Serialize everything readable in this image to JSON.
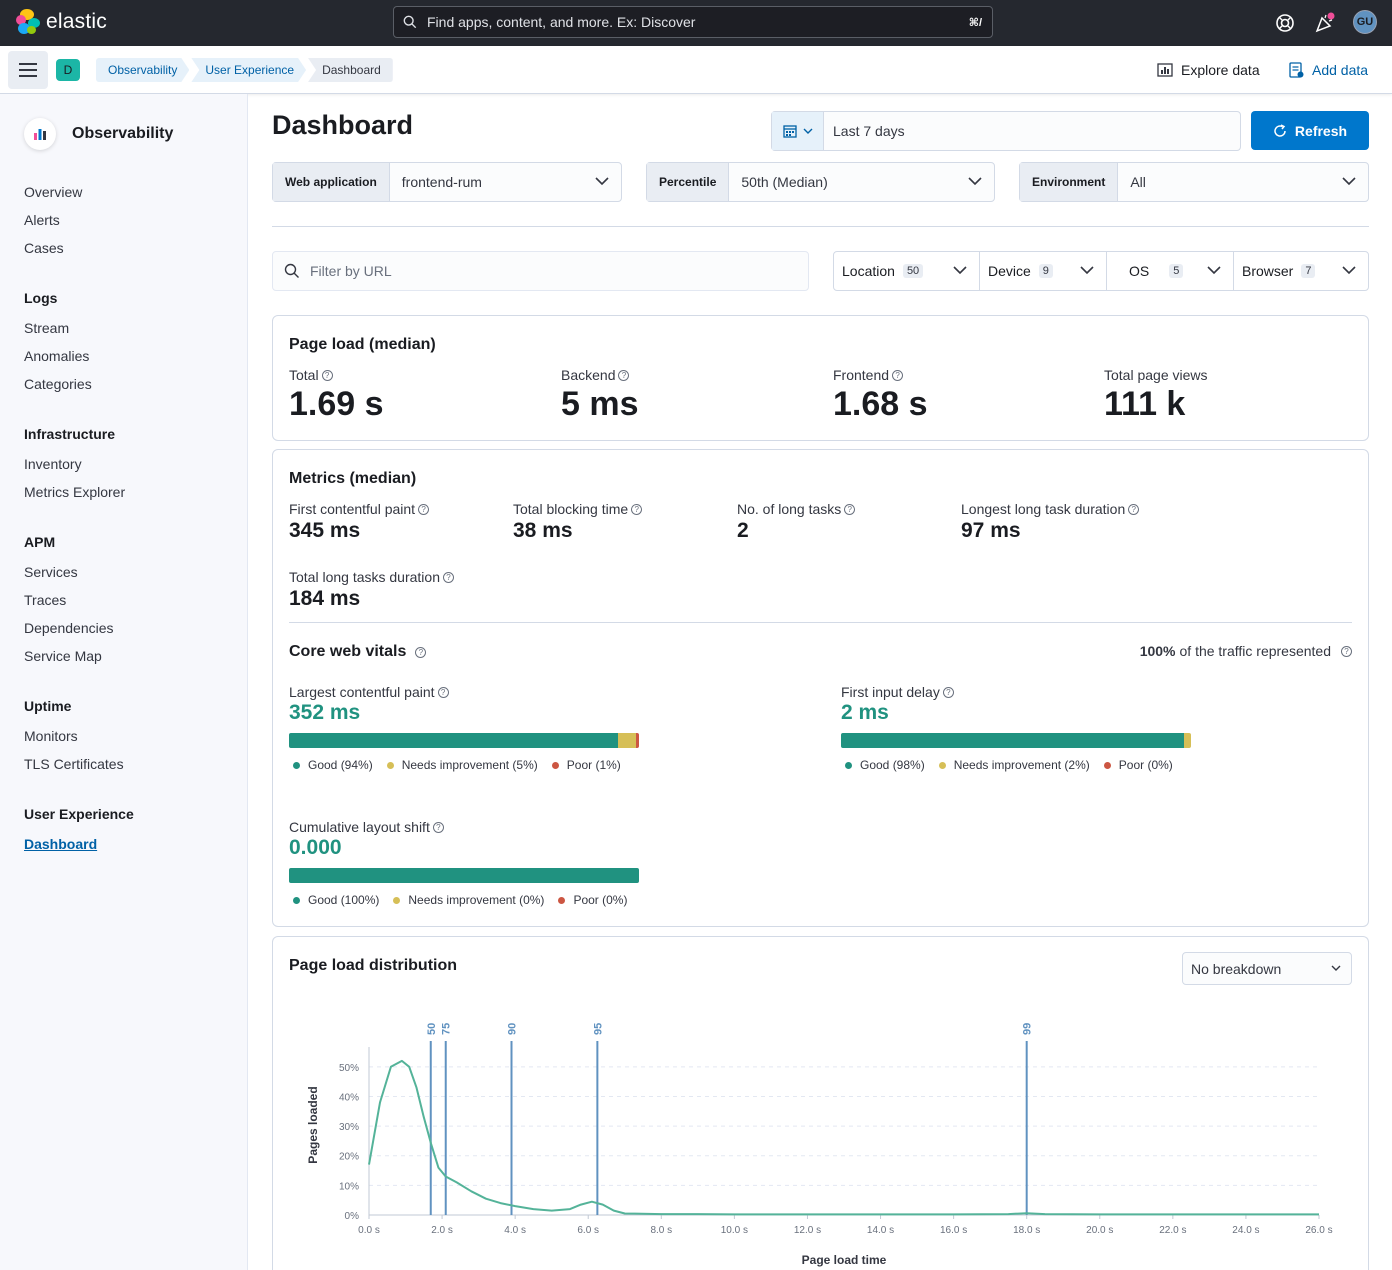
{
  "header": {
    "brand": "elastic",
    "search_placeholder": "Find apps, content, and more. Ex: Discover",
    "search_shortcut": "⌘/",
    "avatar_initials": "GU"
  },
  "subbar": {
    "space_initial": "D",
    "breadcrumbs": [
      "Observability",
      "User Experience",
      "Dashboard"
    ],
    "explore_label": "Explore data",
    "add_data_label": "Add data"
  },
  "sidebar": {
    "title": "Observability",
    "top_items": [
      "Overview",
      "Alerts",
      "Cases"
    ],
    "groups": [
      {
        "title": "Logs",
        "items": [
          "Stream",
          "Anomalies",
          "Categories"
        ]
      },
      {
        "title": "Infrastructure",
        "items": [
          "Inventory",
          "Metrics Explorer"
        ]
      },
      {
        "title": "APM",
        "items": [
          "Services",
          "Traces",
          "Dependencies",
          "Service Map"
        ]
      },
      {
        "title": "Uptime",
        "items": [
          "Monitors",
          "TLS Certificates"
        ]
      },
      {
        "title": "User Experience",
        "items": [
          "Dashboard"
        ]
      }
    ]
  },
  "page": {
    "title": "Dashboard",
    "date_range": "Last 7 days",
    "refresh_label": "Refresh",
    "selectors": [
      {
        "label": "Web application",
        "value": "frontend-rum"
      },
      {
        "label": "Percentile",
        "value": "50th (Median)"
      },
      {
        "label": "Environment",
        "value": "All"
      }
    ],
    "url_filter_placeholder": "Filter by URL",
    "filters": [
      {
        "label": "Location",
        "count": "50"
      },
      {
        "label": "Device",
        "count": "9"
      },
      {
        "label": "OS",
        "count": "5"
      },
      {
        "label": "Browser",
        "count": "7"
      }
    ]
  },
  "page_load": {
    "title": "Page load (median)",
    "stats": [
      {
        "label": "Total",
        "value": "1.69 s",
        "help": true
      },
      {
        "label": "Backend",
        "value": "5 ms",
        "help": true
      },
      {
        "label": "Frontend",
        "value": "1.68 s",
        "help": true
      },
      {
        "label": "Total page views",
        "value": "111 k",
        "help": false
      }
    ]
  },
  "metrics": {
    "title": "Metrics (median)",
    "stats": [
      {
        "label": "First contentful paint",
        "value": "345 ms"
      },
      {
        "label": "Total blocking time",
        "value": "38 ms"
      },
      {
        "label": "No. of long tasks",
        "value": "2"
      },
      {
        "label": "Longest long task duration",
        "value": "97 ms"
      },
      {
        "label": "Total long tasks duration",
        "value": "184 ms"
      }
    ]
  },
  "core_web_vitals": {
    "title": "Core web vitals",
    "traffic_pct": "100%",
    "traffic_text": "of the traffic represented",
    "colors": {
      "good": "#209280",
      "needs": "#d6bf57",
      "poor": "#cc5642"
    },
    "vitals": [
      {
        "label": "Largest contentful paint",
        "value": "352 ms",
        "good": 94,
        "needs": 5,
        "poor": 1,
        "legend": [
          "Good (94%)",
          "Needs improvement (5%)",
          "Poor (1%)"
        ]
      },
      {
        "label": "First input delay",
        "value": "2 ms",
        "good": 98,
        "needs": 2,
        "poor": 0,
        "legend": [
          "Good (98%)",
          "Needs improvement (2%)",
          "Poor (0%)"
        ]
      },
      {
        "label": "Cumulative layout shift",
        "value": "0.000",
        "good": 100,
        "needs": 0,
        "poor": 0,
        "legend": [
          "Good (100%)",
          "Needs improvement (0%)",
          "Poor (0%)"
        ]
      }
    ]
  },
  "distribution": {
    "title": "Page load distribution",
    "breakdown": "No breakdown"
  },
  "chart_data": {
    "type": "line",
    "xlabel": "Page load time",
    "ylabel": "Pages loaded",
    "xlim": [
      0,
      26
    ],
    "ylim": [
      0,
      55
    ],
    "x_ticks": [
      "0.0 s",
      "2.0 s",
      "4.0 s",
      "6.0 s",
      "8.0 s",
      "10.0 s",
      "12.0 s",
      "14.0 s",
      "16.0 s",
      "18.0 s",
      "20.0 s",
      "22.0 s",
      "24.0 s",
      "26.0 s"
    ],
    "y_ticks": [
      "0%",
      "10%",
      "20%",
      "30%",
      "40%",
      "50%"
    ],
    "y_tick_values": [
      0,
      10,
      20,
      30,
      40,
      50
    ],
    "percentile_markers": [
      {
        "label": "50",
        "x": 1.69
      },
      {
        "label": "75",
        "x": 2.1
      },
      {
        "label": "90",
        "x": 3.9
      },
      {
        "label": "95",
        "x": 6.25
      },
      {
        "label": "99",
        "x": 18.0
      }
    ],
    "series": [
      {
        "x": [
          0,
          0.3,
          0.6,
          0.9,
          1.1,
          1.3,
          1.5,
          1.7,
          1.9,
          2.1,
          2.4,
          2.8,
          3.2,
          3.6,
          4.0,
          4.5,
          5.0,
          5.5,
          5.8,
          6.1,
          6.4,
          6.7,
          7.0,
          8,
          9,
          10,
          12,
          14,
          16,
          17.5,
          18,
          18.5,
          20,
          22,
          24,
          26
        ],
        "y": [
          17,
          38,
          50,
          52,
          50,
          43,
          33,
          24,
          16,
          13,
          11,
          8,
          5.5,
          4,
          3,
          2,
          1.5,
          2,
          3.5,
          4.5,
          3.5,
          1.5,
          0.5,
          0.3,
          0.3,
          0.2,
          0.2,
          0.2,
          0.2,
          0.3,
          0.6,
          0.3,
          0.2,
          0.2,
          0.2,
          0.2
        ]
      }
    ]
  }
}
